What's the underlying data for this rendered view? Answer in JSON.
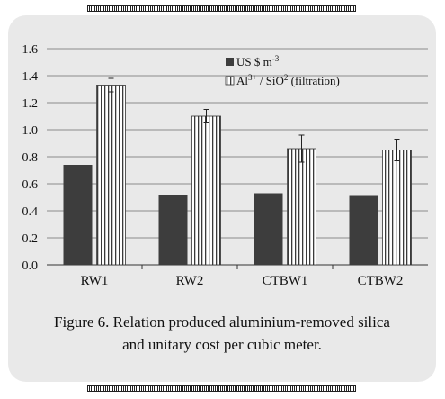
{
  "chart_data": {
    "type": "bar",
    "categories": [
      "RW1",
      "RW2",
      "CTBW1",
      "CTBW2"
    ],
    "series": [
      {
        "name": "US $ m-3",
        "values": [
          0.74,
          0.52,
          0.53,
          0.51
        ],
        "color": "#3d3d3d",
        "pattern": "solid"
      },
      {
        "name": "Al3+ / SiO2 (filtration)",
        "values": [
          1.33,
          1.1,
          0.86,
          0.85
        ],
        "errors": [
          0.05,
          0.05,
          0.1,
          0.08
        ],
        "color": "#ffffff",
        "pattern": "vertical-hatch"
      }
    ],
    "ylim": [
      0,
      1.6
    ],
    "yticks": [
      "0.0",
      "0.2",
      "0.4",
      "0.6",
      "0.8",
      "1.0",
      "1.2",
      "1.4",
      "1.6"
    ],
    "grid": true,
    "legend_position": "top-right"
  },
  "legend": {
    "s1_text": "US $ m",
    "s1_sup": "-3",
    "s2_pre": "Al",
    "s2_sup1": "3+",
    "s2_mid": " / SiO",
    "s2_sup2": "2",
    "s2_post": " (filtration)"
  },
  "caption": {
    "line1": "Figure 6. Relation produced aluminium-removed silica",
    "line2": "and unitary cost per cubic meter."
  }
}
